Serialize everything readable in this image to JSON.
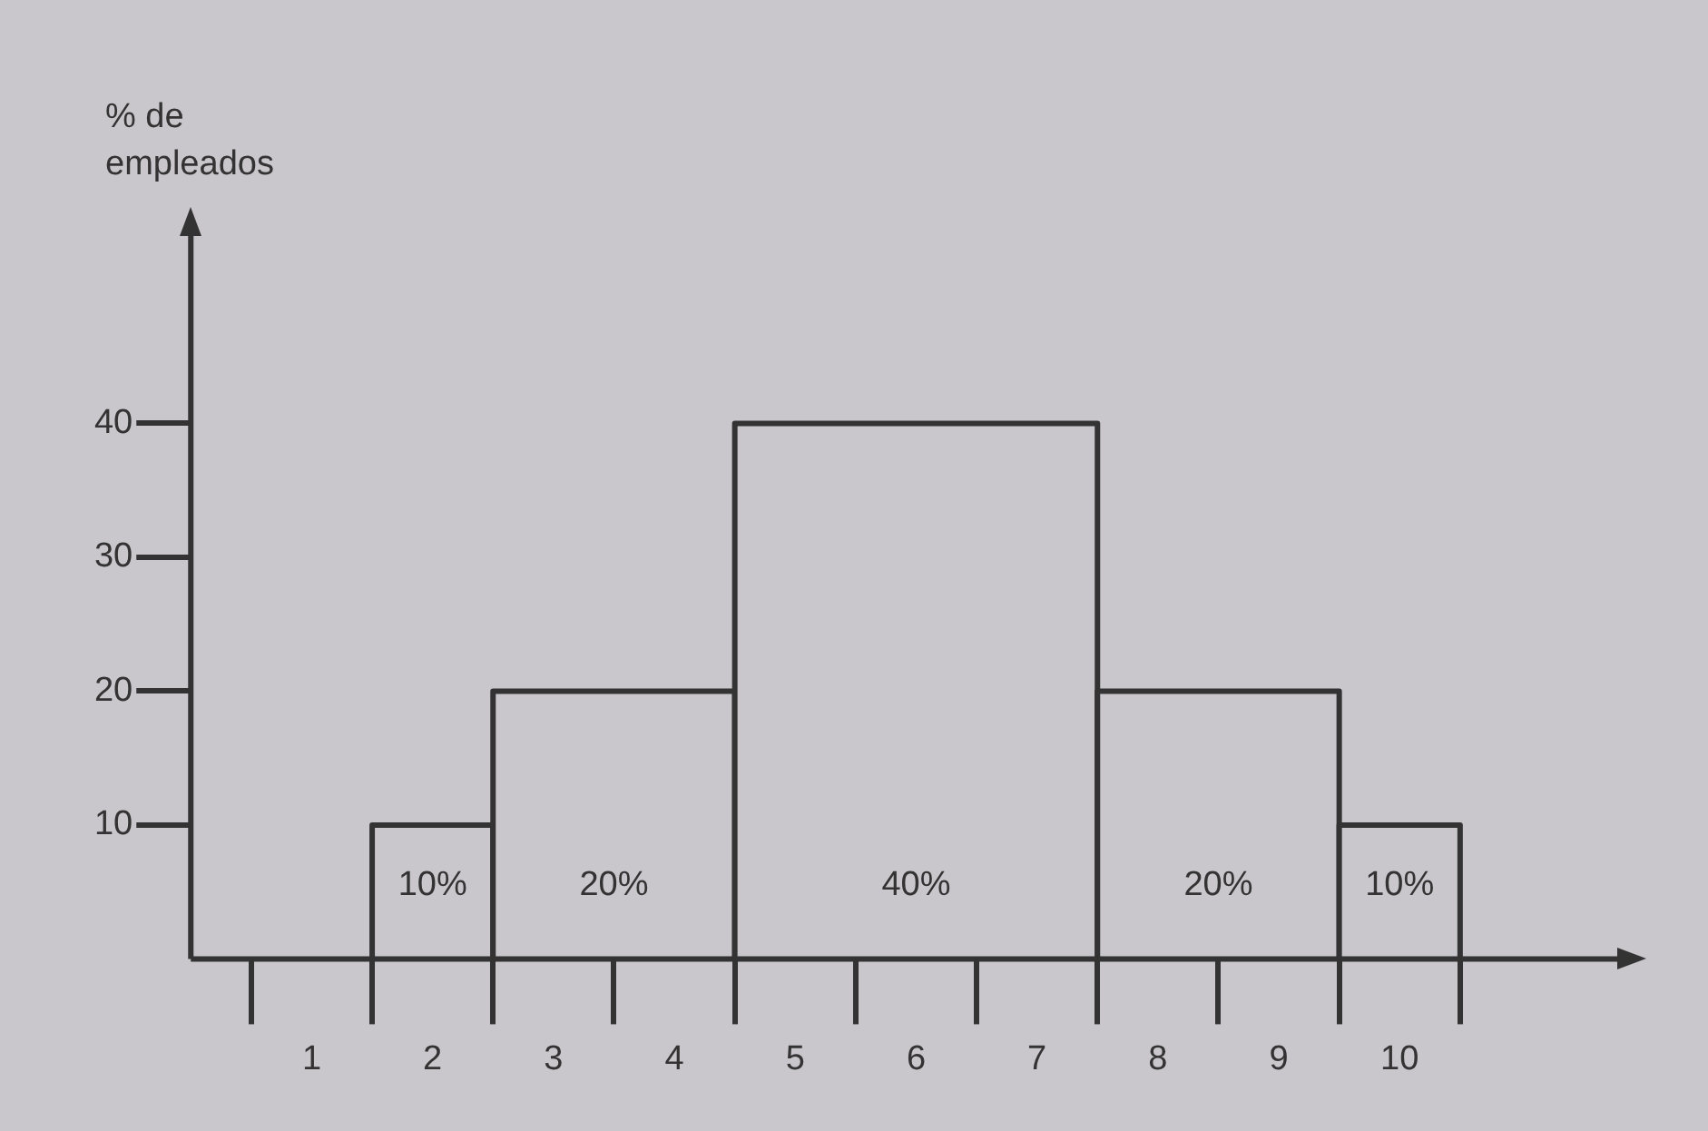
{
  "chart_data": {
    "type": "histogram",
    "ylabel": "% de empleados",
    "bins": [
      1.5,
      2.5,
      4.5,
      7.5,
      9.5,
      10.5
    ],
    "values": [
      10,
      20,
      40,
      20,
      10
    ],
    "value_labels": [
      "10%",
      "20%",
      "40%",
      "20%",
      "10%"
    ],
    "color": "#c9c7cc",
    "xlim": [
      0,
      11.8
    ],
    "xticks": [
      1,
      2,
      3,
      4,
      5,
      6,
      7,
      8,
      9,
      10
    ],
    "ylim": [
      0,
      54
    ],
    "yticks": [
      10,
      20,
      30,
      40
    ],
    "grid": false,
    "legend": false
  }
}
